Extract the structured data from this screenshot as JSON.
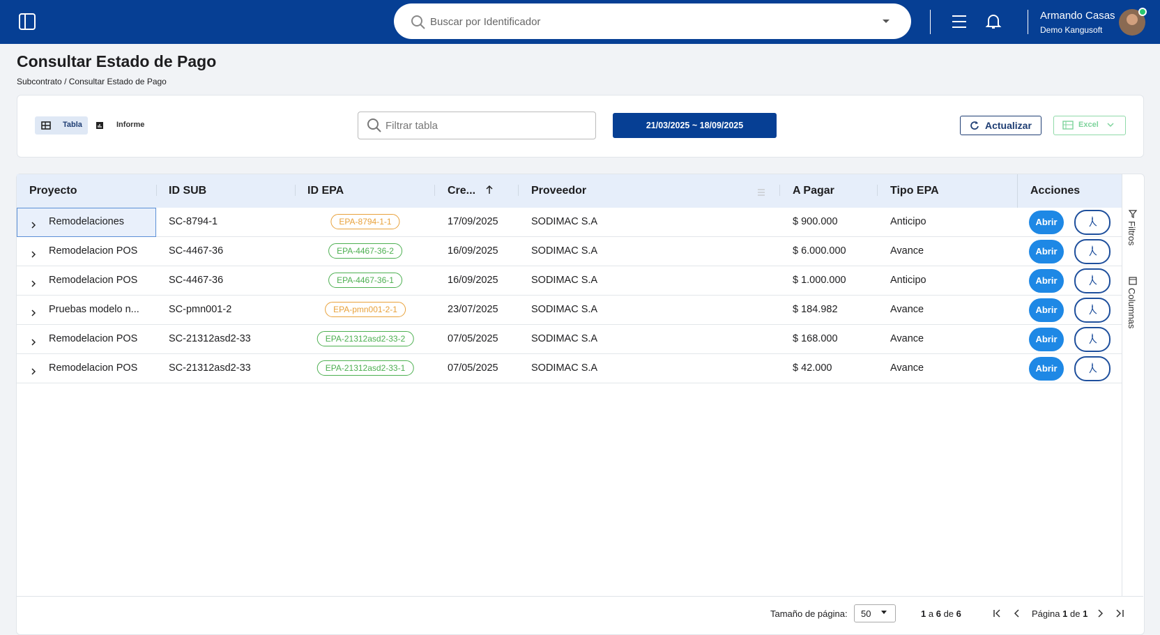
{
  "header": {
    "search_placeholder": "Buscar por Identificador",
    "user_name": "Armando Casas",
    "user_company": "Demo Kangusoft"
  },
  "page": {
    "title": "Consultar Estado de Pago",
    "breadcrumb": [
      "Subcontrato",
      "Consultar Estado de Pago"
    ],
    "breadcrumb_separator": "/"
  },
  "toolbar": {
    "view_tabs": [
      "Tabla",
      "Informe"
    ],
    "filter_placeholder": "Filtrar tabla",
    "date_range": "21/03/2025 ~ 18/09/2025",
    "refresh": "Actualizar",
    "export": "Excel"
  },
  "table": {
    "columns": [
      "Proyecto",
      "ID SUB",
      "ID EPA",
      "Cre...",
      "Proveedor",
      "A Pagar",
      "Tipo EPA",
      "Acciones"
    ],
    "open_label": "Abrir",
    "rows": [
      {
        "cells": [
          "Remodelaciones",
          "SC-8794-1",
          "EPA-8794-1-1",
          "17/09/2025",
          "SODIMAC S.A",
          "$ 900.000",
          "Anticipo"
        ],
        "epa_color": "#e8a13a"
      },
      {
        "cells": [
          "Remodelacion POS",
          "SC-4467-36",
          "EPA-4467-36-2",
          "16/09/2025",
          "SODIMAC S.A",
          "$ 6.000.000",
          "Avance"
        ],
        "epa_color": "#4caf50"
      },
      {
        "cells": [
          "Remodelacion POS",
          "SC-4467-36",
          "EPA-4467-36-1",
          "16/09/2025",
          "SODIMAC S.A",
          "$ 1.000.000",
          "Anticipo"
        ],
        "epa_color": "#4caf50"
      },
      {
        "cells": [
          "Pruebas modelo n...",
          "SC-pmn001-2",
          "EPA-pmn001-2-1",
          "23/07/2025",
          "SODIMAC S.A",
          "$ 184.982",
          "Avance"
        ],
        "epa_color": "#e8a13a"
      },
      {
        "cells": [
          "Remodelacion POS",
          "SC-21312asd2-33",
          "EPA-21312asd2-33-2",
          "07/05/2025",
          "SODIMAC S.A",
          "$ 168.000",
          "Avance"
        ],
        "epa_color": "#4caf50"
      },
      {
        "cells": [
          "Remodelacion POS",
          "SC-21312asd2-33",
          "EPA-21312asd2-33-1",
          "07/05/2025",
          "SODIMAC S.A",
          "$ 42.000",
          "Avance"
        ],
        "epa_color": "#4caf50"
      }
    ]
  },
  "side_panel": [
    "Filtros",
    "Columnas"
  ],
  "pagination": {
    "page_size_label": "Tamaño de página:",
    "page_size": 50,
    "from": 1,
    "to_word": "a",
    "to": 6,
    "of_word": "de",
    "total": 6,
    "page_word": "Página",
    "page": 1,
    "pages_word": "de",
    "pages": 1
  }
}
